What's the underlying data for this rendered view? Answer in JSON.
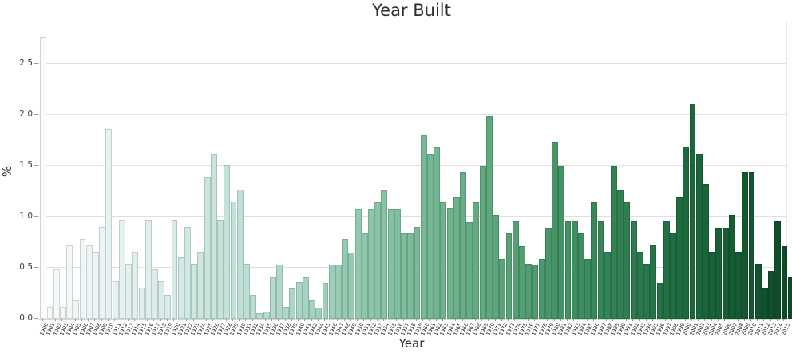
{
  "title": "Year Built",
  "axes": {
    "xlabel": "Year",
    "ylabel": "%"
  },
  "colors": {
    "title_text": "#2f2f2f",
    "tick_text": "#3c3c3c",
    "gridline": "#e0e0e0",
    "palette_stops": [
      "#f7fbfb",
      "#ddeeec",
      "#b9ddd2",
      "#8fc7ac",
      "#65ad83",
      "#3d8f60",
      "#1d6a3d",
      "#0d4a27"
    ]
  },
  "chart_data": {
    "type": "bar",
    "title": "Year Built",
    "xlabel": "Year",
    "ylabel": "%",
    "ylim": [
      0,
      2.9
    ],
    "grid": true,
    "legend": "none",
    "ytick_values": [
      0.0,
      0.5,
      1.0,
      1.5,
      2.0,
      2.5
    ],
    "ytick_labels": [
      "0.0",
      "0.5",
      "1.0",
      "1.5",
      "2.0",
      "2.5"
    ],
    "note": "single series; sequential light-to-dark green color per bar; years 1933 and 1943 absent from axis",
    "categories": [
      "1900",
      "1901",
      "1902",
      "1903",
      "1904",
      "1905",
      "1906",
      "1907",
      "1908",
      "1909",
      "1910",
      "1911",
      "1912",
      "1913",
      "1914",
      "1915",
      "1916",
      "1917",
      "1918",
      "1919",
      "1920",
      "1921",
      "1922",
      "1923",
      "1924",
      "1925",
      "1926",
      "1927",
      "1928",
      "1929",
      "1930",
      "1931",
      "1932",
      "1934",
      "1935",
      "1936",
      "1937",
      "1938",
      "1939",
      "1940",
      "1941",
      "1942",
      "1944",
      "1945",
      "1946",
      "1947",
      "1948",
      "1949",
      "1950",
      "1951",
      "1952",
      "1953",
      "1954",
      "1955",
      "1956",
      "1957",
      "1958",
      "1959",
      "1960",
      "1961",
      "1962",
      "1963",
      "1964",
      "1965",
      "1966",
      "1967",
      "1968",
      "1969",
      "1970",
      "1971",
      "1972",
      "1973",
      "1974",
      "1975",
      "1976",
      "1977",
      "1978",
      "1979",
      "1980",
      "1981",
      "1982",
      "1983",
      "1984",
      "1985",
      "1986",
      "1987",
      "1988",
      "1989",
      "1990",
      "1991",
      "1992",
      "1993",
      "1994",
      "1995",
      "1996",
      "1997",
      "1998",
      "1999",
      "2000",
      "2001",
      "2002",
      "2003",
      "2004",
      "2005",
      "2006",
      "2007",
      "2008",
      "2009",
      "2010",
      "2011",
      "2012",
      "2013",
      "2014",
      "2015"
    ],
    "values": [
      2.75,
      0.11,
      0.48,
      0.11,
      0.71,
      0.17,
      0.77,
      0.71,
      0.65,
      0.89,
      1.85,
      0.36,
      0.96,
      0.53,
      0.65,
      0.3,
      0.96,
      0.48,
      0.36,
      0.23,
      0.96,
      0.59,
      0.89,
      0.53,
      0.65,
      1.38,
      1.61,
      0.96,
      1.5,
      1.14,
      1.26,
      0.53,
      0.23,
      0.05,
      0.06,
      0.4,
      0.52,
      0.11,
      0.29,
      0.35,
      0.4,
      0.17,
      0.1,
      0.34,
      0.52,
      0.52,
      0.77,
      0.64,
      1.07,
      0.83,
      1.07,
      1.13,
      1.25,
      1.07,
      1.07,
      0.83,
      0.83,
      0.89,
      1.79,
      1.61,
      1.67,
      1.13,
      1.08,
      1.19,
      1.43,
      0.94,
      1.13,
      1.49,
      1.98,
      1.01,
      0.58,
      0.83,
      0.95,
      0.7,
      0.53,
      0.52,
      0.58,
      0.88,
      1.73,
      1.49,
      0.95,
      0.95,
      0.83,
      0.58,
      1.13,
      0.95,
      0.65,
      1.49,
      1.25,
      1.13,
      0.95,
      0.65,
      0.53,
      0.71,
      0.34,
      0.95,
      0.83,
      1.19,
      1.68,
      2.1,
      1.61,
      1.31,
      0.65,
      0.88,
      0.88,
      1.01,
      0.65,
      1.43,
      1.43,
      0.53,
      0.29,
      0.46,
      0.95,
      0.7,
      0.41
    ]
  }
}
